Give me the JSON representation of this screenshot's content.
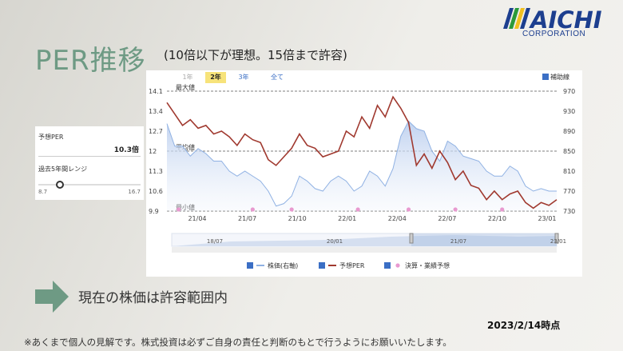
{
  "page": {
    "title": "PER推移",
    "subtitle": "(10倍以下が理想。15倍まで許容)",
    "status_text": "現在の株価は許容範囲内",
    "date_text": "2023/2/14時点",
    "disclaimer": "※あくまで個人の見解です。株式投資は必ずご自身の責任と判断のもとで行うようにお願いいたします。"
  },
  "logo": {
    "brand": "AICHI",
    "sub": "CORPORATION",
    "colors": [
      "#1d3f8f",
      "#2a9a3a",
      "#f0c020"
    ]
  },
  "side_panel": {
    "per_label": "予想PER",
    "per_value": "10.3倍",
    "range_label": "過去5年間レンジ",
    "range_min": "8.7",
    "range_max": "16.7",
    "range_position": 0.2
  },
  "chart_controls": {
    "periods": [
      "1年",
      "2年",
      "3年",
      "全て"
    ],
    "selected_period": "2年",
    "aux_line_label": "補助線"
  },
  "chart_data": {
    "type": "line",
    "y_left_ticks": [
      "14.1",
      "13.4",
      "12.7",
      "12",
      "11.3",
      "10.6",
      "9.9"
    ],
    "y_left_range": [
      9.9,
      14.1
    ],
    "y_right_ticks": [
      "970",
      "930",
      "890",
      "850",
      "810",
      "770",
      "730"
    ],
    "y_right_range": [
      730,
      970
    ],
    "x_ticks": [
      "21/04",
      "21/07",
      "21/10",
      "22/01",
      "22/04",
      "22/07",
      "22/10",
      "23/01"
    ],
    "reference_lines": [
      {
        "label": "最大値",
        "value": 14.1
      },
      {
        "label": "平均値",
        "value": 12
      },
      {
        "label": "最小値",
        "value": 9.9
      }
    ],
    "series": [
      {
        "name": "株価(右軸)",
        "color": "#8fb1e3",
        "x": [
          0,
          2,
          4,
          6,
          8,
          10,
          12,
          14,
          16,
          18,
          20,
          22,
          24,
          26,
          28,
          30,
          32,
          34,
          36,
          38,
          40,
          42,
          44,
          46,
          48,
          50,
          52,
          54,
          56,
          58,
          60,
          62,
          64,
          66,
          68,
          70,
          72,
          74,
          76,
          78,
          80,
          82,
          84,
          86,
          88,
          90,
          92,
          94,
          96,
          98,
          100
        ],
        "values": [
          905,
          860,
          860,
          840,
          855,
          845,
          830,
          830,
          810,
          800,
          810,
          800,
          790,
          770,
          740,
          745,
          760,
          800,
          790,
          775,
          770,
          790,
          800,
          790,
          770,
          780,
          810,
          800,
          780,
          815,
          880,
          910,
          895,
          890,
          850,
          830,
          870,
          860,
          840,
          835,
          830,
          810,
          800,
          800,
          820,
          810,
          780,
          770,
          775,
          770,
          770
        ]
      },
      {
        "name": "予想PER",
        "color": "#a0392f",
        "x": [
          0,
          2,
          4,
          6,
          8,
          10,
          12,
          14,
          16,
          18,
          20,
          22,
          24,
          26,
          28,
          30,
          32,
          34,
          36,
          38,
          40,
          42,
          44,
          46,
          48,
          50,
          52,
          54,
          56,
          58,
          60,
          62,
          64,
          66,
          68,
          70,
          72,
          74,
          76,
          78,
          80,
          82,
          84,
          86,
          88,
          90,
          92,
          94,
          96,
          98,
          100
        ],
        "values": [
          13.7,
          13.3,
          12.9,
          13.1,
          12.8,
          12.9,
          12.6,
          12.7,
          12.5,
          12.2,
          12.6,
          12.4,
          12.3,
          11.7,
          11.5,
          11.8,
          12.1,
          12.6,
          12.2,
          12.1,
          11.8,
          11.9,
          12.0,
          12.7,
          12.5,
          13.2,
          12.8,
          13.6,
          13.2,
          13.9,
          13.5,
          13.0,
          11.5,
          11.9,
          11.4,
          12.0,
          11.6,
          11.0,
          11.3,
          10.8,
          10.7,
          10.3,
          10.6,
          10.3,
          10.5,
          10.6,
          10.2,
          10.0,
          10.2,
          10.1,
          10.3
        ]
      }
    ],
    "events": {
      "name": "決算・業績予想",
      "x": [
        3,
        22,
        32,
        49,
        62,
        74,
        86
      ]
    },
    "navigator_ticks": [
      "18/07",
      "20/01",
      "21/07",
      "23/01"
    ],
    "legend": [
      {
        "label": "株価(右軸)",
        "color": "#8fb1e3"
      },
      {
        "label": "予想PER",
        "color": "#a0392f"
      },
      {
        "label": "決算・業績予想",
        "color": "#e89ad0"
      }
    ]
  }
}
